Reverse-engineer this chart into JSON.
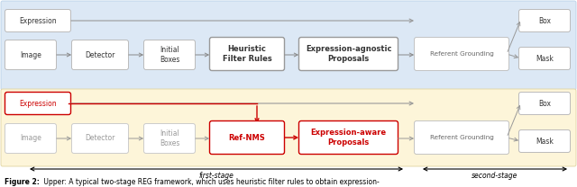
{
  "bg_top": "#dce8f5",
  "bg_bottom": "#fdf5d9",
  "box_edge": "#bbbbbb",
  "arrow_color": "#888888",
  "red_color": "#cc0000",
  "caption_bold": "Figure 2:",
  "caption_rest": " Upper: A typical two-stage REG framework, which uses heuristic filter rules to obtain expression-",
  "stage1_label": "first-stage",
  "stage2_label": "second-stage",
  "fig_width": 6.4,
  "fig_height": 2.08,
  "dpi": 100
}
